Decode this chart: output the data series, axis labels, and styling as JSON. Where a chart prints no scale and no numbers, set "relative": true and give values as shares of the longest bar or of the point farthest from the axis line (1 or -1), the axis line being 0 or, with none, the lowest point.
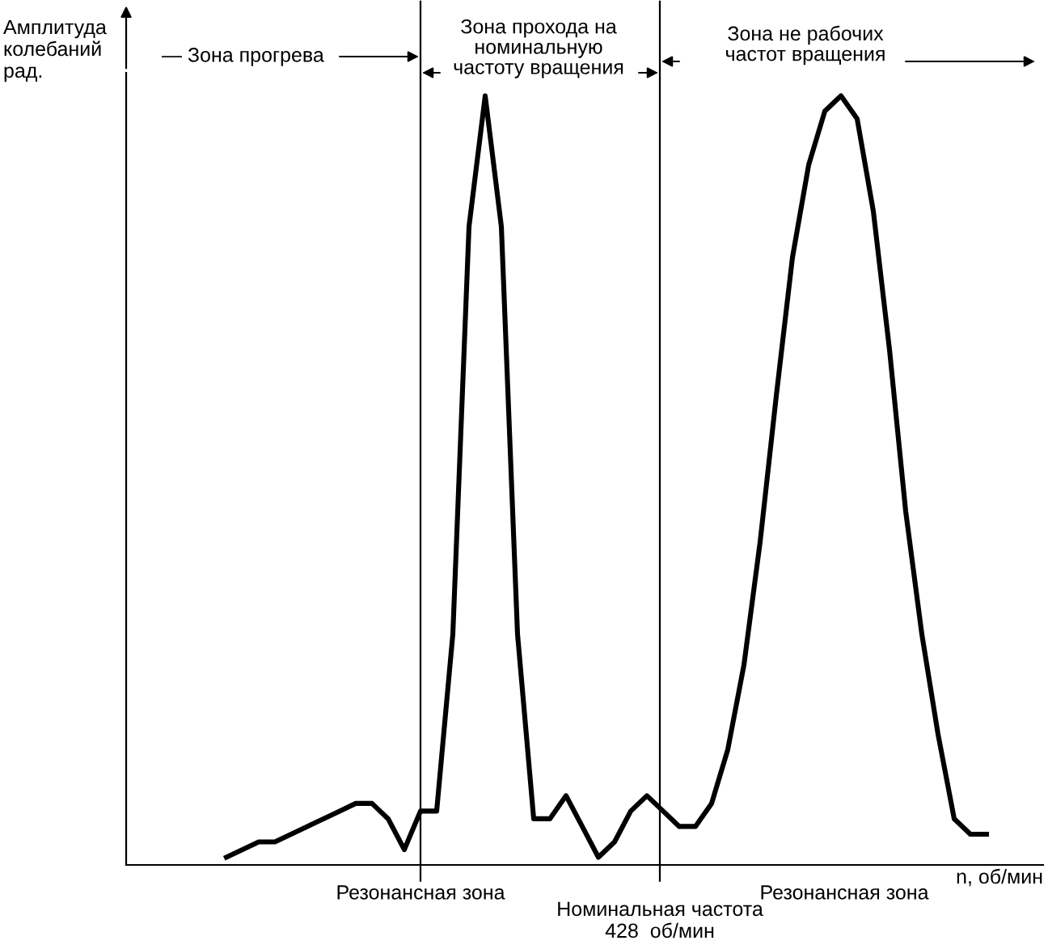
{
  "chart_data": {
    "type": "line",
    "relative": true,
    "color": "#000000",
    "xlabel": "n, об/мин",
    "categories": [
      null,
      null,
      null,
      null,
      null,
      null,
      null,
      null,
      null,
      null,
      null,
      null,
      null,
      null,
      null,
      null,
      null,
      null,
      null,
      null,
      null,
      null,
      null,
      null,
      null,
      null,
      null,
      null,
      null,
      null,
      null,
      null,
      null,
      null,
      null,
      null,
      null,
      null,
      null,
      null,
      null,
      null,
      null,
      null,
      null,
      null,
      null,
      null
    ],
    "values": [
      0.01,
      0.02,
      0.03,
      0.03,
      0.04,
      0.05,
      0.06,
      0.07,
      0.08,
      0.08,
      0.06,
      0.02,
      0.07,
      0.07,
      0.3,
      0.83,
      1.0,
      0.83,
      0.3,
      0.06,
      0.06,
      0.09,
      0.05,
      0.01,
      0.03,
      0.07,
      0.09,
      0.07,
      0.05,
      0.05,
      0.08,
      0.15,
      0.26,
      0.42,
      0.61,
      0.79,
      0.91,
      0.98,
      1.0,
      0.97,
      0.85,
      0.67,
      0.46,
      0.3,
      0.17,
      0.06,
      0.04,
      0.04
    ],
    "annotations": [
      "Амплитуда\nколебаний\nрад.",
      "— Зона прогрева",
      "Зона прохода на\nноминальную\nчастоту вращения",
      "Зона не рабочих\nчастот вращения",
      "Резонансная зона",
      "Резонансная зона",
      "Номинальная частота\n428  об/мин"
    ],
    "legend": false,
    "marker": "none",
    "line_style": "solid"
  }
}
